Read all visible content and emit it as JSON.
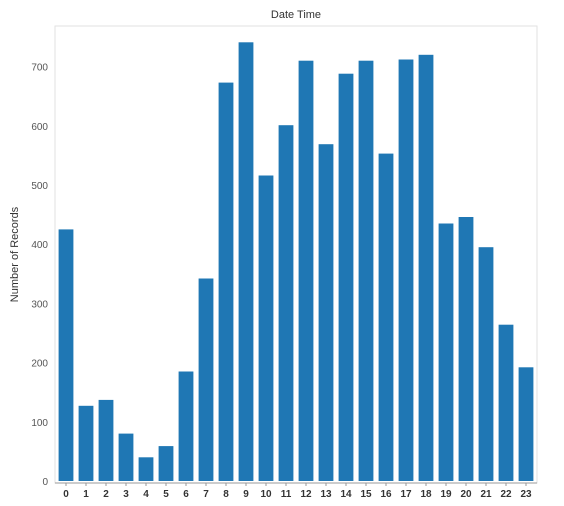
{
  "chart_data": {
    "type": "bar",
    "title": "Date Time",
    "xlabel": "",
    "ylabel": "Number of Records",
    "categories": [
      "0",
      "1",
      "2",
      "3",
      "4",
      "5",
      "6",
      "7",
      "8",
      "9",
      "10",
      "11",
      "12",
      "13",
      "14",
      "15",
      "16",
      "17",
      "18",
      "19",
      "20",
      "21",
      "22",
      "23"
    ],
    "values": [
      425,
      127,
      137,
      80,
      40,
      59,
      185,
      342,
      673,
      741,
      516,
      601,
      710,
      569,
      688,
      710,
      553,
      712,
      720,
      435,
      446,
      395,
      264,
      192
    ],
    "ylim": [
      0,
      780
    ],
    "yticks": [
      0,
      100,
      200,
      300,
      400,
      500,
      600,
      700
    ],
    "grid": false,
    "legend": "none",
    "bar_color": "#1f77b4"
  }
}
